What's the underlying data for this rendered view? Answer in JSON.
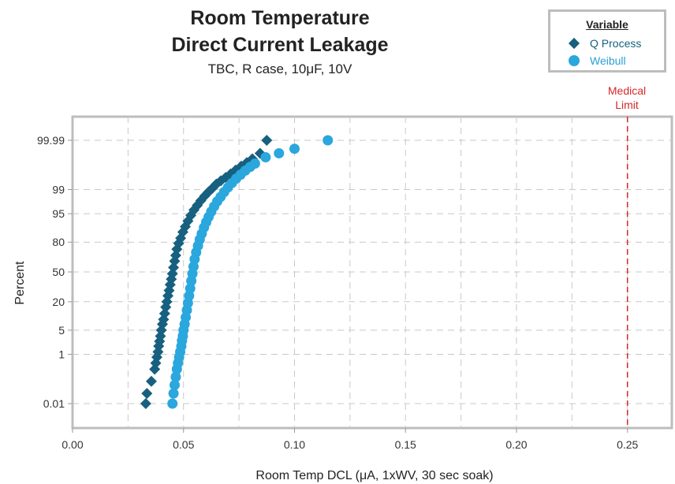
{
  "chart_data": {
    "type": "scatter",
    "title": [
      "Room Temperature",
      "Direct Current Leakage"
    ],
    "subtitle": "TBC, R case, 10μF, 10V",
    "xlabel": "Room Temp DCL (μA, 1xWV, 30 sec soak)",
    "ylabel": "Percent",
    "xlim": [
      0.0,
      0.27
    ],
    "x_ticks": [
      0.0,
      0.05,
      0.1,
      0.15,
      0.2,
      0.25
    ],
    "x_tick_labels": [
      "0.00",
      "0.05",
      "0.10",
      "0.15",
      "0.20",
      "0.25"
    ],
    "y_scale": "probability",
    "y_ticks": [
      0.01,
      1,
      5,
      20,
      50,
      80,
      95,
      99,
      99.99
    ],
    "y_tick_labels": [
      "0.01",
      "1",
      "5",
      "20",
      "50",
      "80",
      "95",
      "99",
      "99.99"
    ],
    "grid": true,
    "legend": {
      "title": "Variable",
      "placement": "top-right"
    },
    "reference_line": {
      "x": 0.25,
      "label": [
        "Medical",
        "Limit"
      ],
      "color": "#d62728"
    },
    "series": [
      {
        "name": "Q Process",
        "marker": "diamond",
        "color": "#17607f",
        "x": [
          0.033,
          0.0335,
          0.0355,
          0.037,
          0.0375,
          0.038,
          0.0385,
          0.0388,
          0.0392,
          0.0396,
          0.04,
          0.0405,
          0.041,
          0.0415,
          0.042,
          0.0425,
          0.043,
          0.0435,
          0.044,
          0.0445,
          0.045,
          0.0455,
          0.046,
          0.0465,
          0.047,
          0.0478,
          0.0487,
          0.0497,
          0.0508,
          0.052,
          0.0533,
          0.0547,
          0.0562,
          0.0578,
          0.0595,
          0.0612,
          0.063,
          0.0648,
          0.0668,
          0.069,
          0.0712,
          0.0735,
          0.076,
          0.0785,
          0.081,
          0.0845,
          0.0875
        ],
        "y": [
          0.01,
          0.03,
          0.1,
          0.3,
          0.5,
          0.8,
          1.2,
          1.8,
          2.5,
          3.5,
          5,
          7,
          9,
          12,
          16,
          20,
          25,
          30,
          36,
          42,
          48,
          55,
          62,
          68,
          74,
          79,
          83,
          87,
          90,
          92.5,
          94.5,
          96,
          97,
          97.8,
          98.4,
          98.8,
          99.1,
          99.35,
          99.5,
          99.62,
          99.72,
          99.8,
          99.86,
          99.9,
          99.93,
          99.96,
          99.99
        ]
      },
      {
        "name": "Weibull",
        "marker": "circle",
        "color": "#2aa7dd",
        "x": [
          0.045,
          0.0455,
          0.046,
          0.0465,
          0.047,
          0.0475,
          0.048,
          0.0485,
          0.049,
          0.0493,
          0.0497,
          0.05,
          0.0505,
          0.051,
          0.0515,
          0.052,
          0.0525,
          0.053,
          0.0535,
          0.054,
          0.0545,
          0.055,
          0.0557,
          0.0565,
          0.0573,
          0.0582,
          0.0592,
          0.0602,
          0.0613,
          0.0625,
          0.0638,
          0.0652,
          0.0667,
          0.0683,
          0.07,
          0.0718,
          0.0737,
          0.0757,
          0.0778,
          0.08,
          0.0822,
          0.087,
          0.093,
          0.1,
          0.115
        ],
        "y": [
          0.01,
          0.03,
          0.07,
          0.15,
          0.3,
          0.5,
          0.8,
          1.2,
          1.8,
          2.6,
          3.5,
          5,
          7,
          10,
          14,
          19,
          25,
          32,
          40,
          48,
          56,
          64,
          71,
          77,
          82,
          86,
          89.5,
          92,
          94,
          95.6,
          96.8,
          97.7,
          98.3,
          98.8,
          99.15,
          99.4,
          99.58,
          99.7,
          99.79,
          99.85,
          99.89,
          99.94,
          99.96,
          99.975,
          99.99
        ]
      }
    ]
  }
}
